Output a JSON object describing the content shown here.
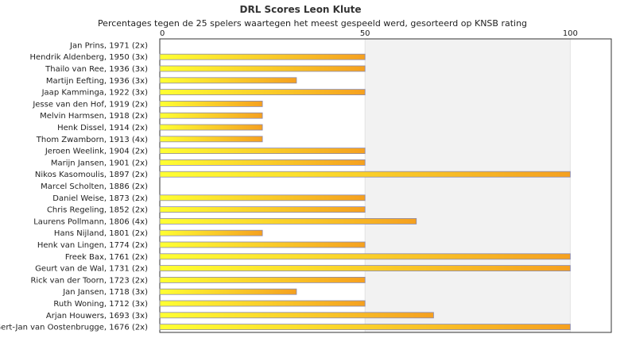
{
  "chart_data": {
    "type": "bar",
    "orientation": "horizontal",
    "title": "DRL Scores Leon Klute",
    "subtitle": "Percentages tegen de 25 spelers waartegen het meest gespeeld werd, gesorteerd op KNSB rating",
    "xlim": [
      0,
      110
    ],
    "xticks": [
      0,
      50,
      100
    ],
    "grid": true,
    "legend": "none",
    "colors": {
      "bar_start": "#ffff33",
      "bar_end": "#f5a020",
      "bar_border": "#8a8ab0",
      "band": "#f2f2f2"
    },
    "categories": [
      "Jan Prins, 1971 (2x)",
      "Hendrik Aldenberg, 1950 (3x)",
      "Thailo van Ree, 1936 (3x)",
      "Martijn Eefting, 1936 (3x)",
      "Jaap Kamminga, 1922 (3x)",
      "Jesse van den Hof, 1919 (2x)",
      "Melvin Harmsen, 1918 (2x)",
      "Henk Dissel, 1914 (2x)",
      "Thom Zwamborn, 1913 (4x)",
      "Jeroen Weelink, 1904 (2x)",
      "Marijn Jansen, 1901 (2x)",
      "Nikos Kasomoulis, 1897 (2x)",
      "Marcel Scholten, 1886 (2x)",
      "Daniel Weise, 1873 (2x)",
      "Chris Regeling, 1852 (2x)",
      "Laurens Pollmann, 1806 (4x)",
      "Hans Nijland, 1801 (2x)",
      "Henk van Lingen, 1774 (2x)",
      "Freek Bax, 1761 (2x)",
      "Geurt van de Wal, 1731 (2x)",
      "Rick van der Toorn, 1723 (2x)",
      "Jan Jansen, 1718 (3x)",
      "Ruth Woning, 1712 (3x)",
      "Arjan Houwers, 1693 (3x)",
      "Gert-Jan van Oostenbrugge, 1676 (2x)"
    ],
    "values": [
      0,
      50,
      50,
      33.3,
      50,
      25,
      25,
      25,
      25,
      50,
      50,
      100,
      0,
      50,
      50,
      62.5,
      25,
      50,
      100,
      100,
      50,
      33.3,
      50,
      66.7,
      100
    ]
  }
}
